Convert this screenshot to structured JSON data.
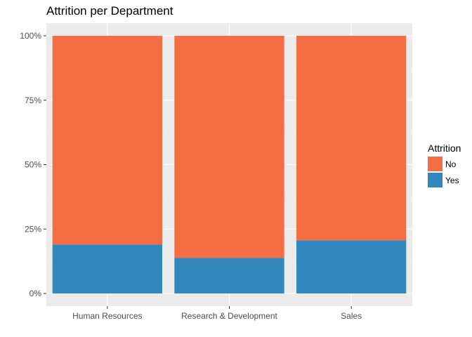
{
  "chart_data": {
    "type": "bar",
    "stacked": true,
    "title": "Attrition per Department",
    "xlabel": "",
    "ylabel": "",
    "categories": [
      "Human Resources",
      "Research & Development",
      "Sales"
    ],
    "series": [
      {
        "name": "No",
        "color": "#F46D43",
        "values": [
          0.81,
          0.862,
          0.794
        ]
      },
      {
        "name": "Yes",
        "color": "#3288BD",
        "values": [
          0.19,
          0.138,
          0.206
        ]
      }
    ],
    "ylim": [
      0,
      1
    ],
    "y_ticks": [
      0,
      0.25,
      0.5,
      0.75,
      1
    ],
    "y_tick_labels": [
      "0%",
      "25%",
      "50%",
      "75%",
      "100%"
    ],
    "legend": {
      "title": "Attrition",
      "position": "right"
    },
    "grid": true,
    "background": "#EBEBEB"
  }
}
